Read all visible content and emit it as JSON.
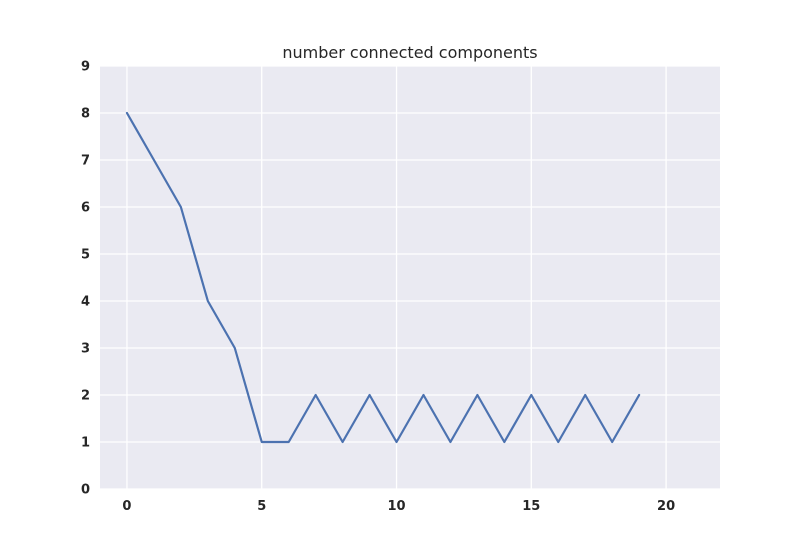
{
  "chart_data": {
    "type": "line",
    "title": "number connected components",
    "xlabel": "",
    "ylabel": "",
    "xlim": [
      -1,
      22
    ],
    "ylim": [
      0,
      9
    ],
    "xticks": [
      0,
      5,
      10,
      15,
      20
    ],
    "yticks": [
      0,
      1,
      2,
      3,
      4,
      5,
      6,
      7,
      8,
      9
    ],
    "grid": true,
    "legend": "none",
    "background_color": "#EAEAF2",
    "series": [
      {
        "color": "#4C72B0",
        "x": [
          0,
          1,
          2,
          3,
          4,
          5,
          6,
          7,
          8,
          9,
          10,
          11,
          12,
          13,
          14,
          15,
          16,
          17,
          18,
          19
        ],
        "y": [
          8,
          7,
          6,
          4,
          3,
          1,
          1,
          2,
          1,
          2,
          1,
          2,
          1,
          2,
          1,
          2,
          1,
          2,
          1,
          2
        ]
      }
    ]
  }
}
